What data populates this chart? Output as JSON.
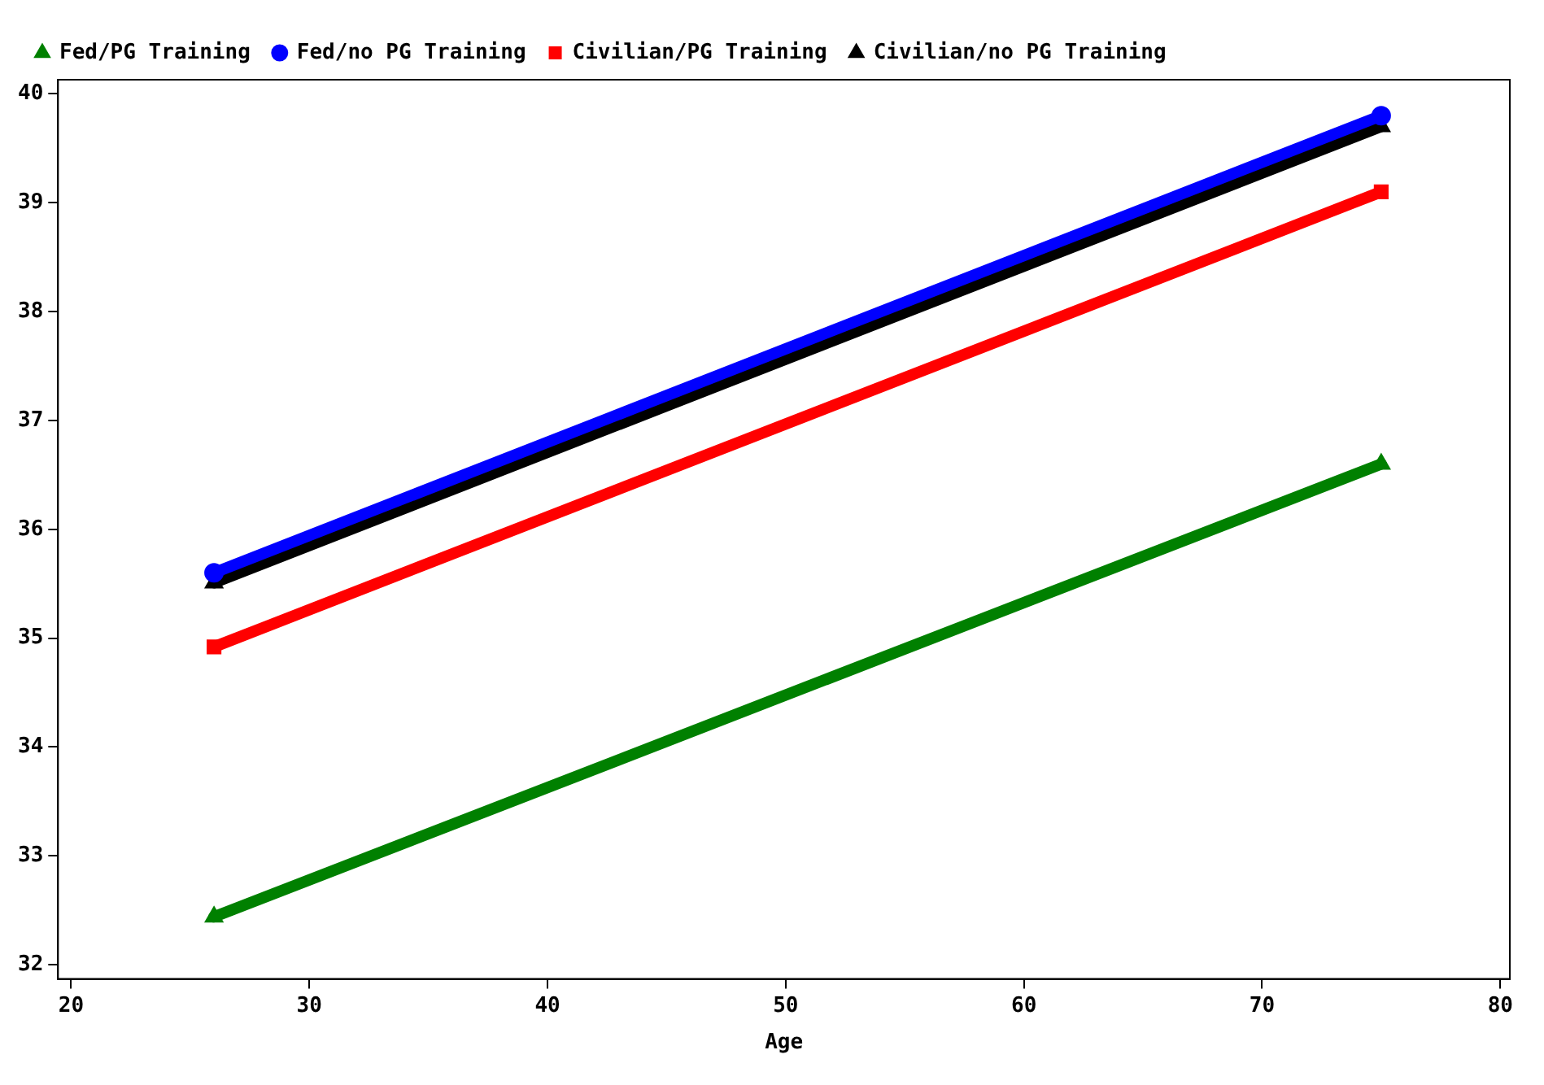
{
  "chart_data": {
    "type": "line",
    "xlabel": "Age",
    "x": [
      26,
      75
    ],
    "series": [
      {
        "name": "Fed/PG Training",
        "color": "#008000",
        "marker": "triangle",
        "values": [
          32.44,
          36.6
        ]
      },
      {
        "name": "Fed/no PG Training",
        "color": "#0000ff",
        "marker": "circle",
        "values": [
          35.6,
          39.8
        ]
      },
      {
        "name": "Civilian/PG Training",
        "color": "#ff0000",
        "marker": "square",
        "values": [
          34.92,
          39.1
        ]
      },
      {
        "name": "Civilian/no PG Training",
        "color": "#000000",
        "marker": "triangle",
        "values": [
          35.51,
          39.7
        ]
      }
    ],
    "xlim": [
      19.45,
      80.4
    ],
    "xticks": [
      20,
      30,
      40,
      50,
      60,
      70,
      80
    ],
    "ylim": [
      31.87,
      40.13
    ],
    "yticks": [
      32,
      33,
      34,
      35,
      36,
      37,
      38,
      39,
      40
    ],
    "grid": false,
    "legend": "top left"
  }
}
